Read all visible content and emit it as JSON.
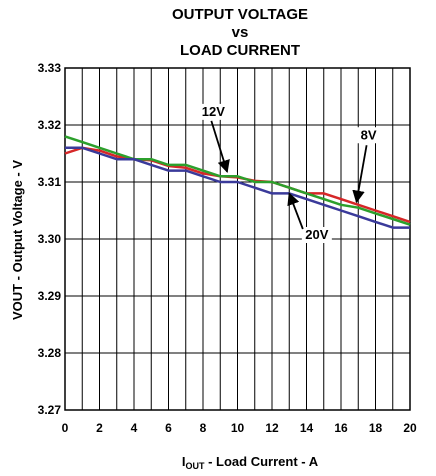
{
  "chart_data": {
    "type": "line",
    "title_lines": [
      "OUTPUT VOLTAGE",
      "vs",
      "LOAD CURRENT"
    ],
    "xlabel": {
      "main": "I",
      "sub": "OUT",
      "rest": " - Load Current - A"
    },
    "ylabel": "VOUT - Output Voltage - V",
    "xlim": [
      0,
      20
    ],
    "ylim": [
      3.27,
      3.33
    ],
    "x_ticks": [
      0,
      2,
      4,
      6,
      8,
      10,
      12,
      14,
      16,
      18,
      20
    ],
    "y_ticks": [
      "3.27",
      "3.28",
      "3.29",
      "3.30",
      "3.31",
      "3.32",
      "3.33"
    ],
    "grid": true,
    "series": [
      {
        "name": "8V",
        "color": "#d62728",
        "x": [
          0,
          1,
          2,
          3,
          4,
          5,
          6,
          7,
          8,
          9,
          10,
          11,
          12,
          13,
          14,
          15,
          16,
          17,
          18,
          19,
          20
        ],
        "y": [
          3.315,
          3.316,
          3.3155,
          3.3145,
          3.314,
          3.3138,
          3.3128,
          3.3125,
          3.3115,
          3.311,
          3.3108,
          3.3102,
          3.31,
          3.309,
          3.308,
          3.308,
          3.307,
          3.306,
          3.305,
          3.304,
          3.303
        ]
      },
      {
        "name": "12V",
        "color": "#2ca02c",
        "x": [
          0,
          1,
          2,
          3,
          4,
          5,
          6,
          7,
          8,
          9,
          10,
          11,
          12,
          13,
          14,
          15,
          16,
          17,
          18,
          19,
          20
        ],
        "y": [
          3.318,
          3.317,
          3.316,
          3.315,
          3.314,
          3.314,
          3.313,
          3.313,
          3.312,
          3.311,
          3.311,
          3.31,
          3.31,
          3.309,
          3.308,
          3.307,
          3.306,
          3.3055,
          3.3045,
          3.3035,
          3.3025
        ]
      },
      {
        "name": "20V",
        "color": "#3a3a9a",
        "x": [
          0,
          1,
          2,
          3,
          4,
          5,
          6,
          7,
          8,
          9,
          10,
          11,
          12,
          13,
          14,
          15,
          16,
          17,
          18,
          19,
          20
        ],
        "y": [
          3.316,
          3.316,
          3.315,
          3.314,
          3.314,
          3.313,
          3.312,
          3.312,
          3.311,
          3.31,
          3.31,
          3.309,
          3.308,
          3.308,
          3.307,
          3.306,
          3.305,
          3.304,
          3.303,
          3.302,
          3.302
        ]
      }
    ],
    "annotations": [
      {
        "text": "12V",
        "series": "12V"
      },
      {
        "text": "8V",
        "series": "8V"
      },
      {
        "text": "20V",
        "series": "20V"
      }
    ]
  }
}
